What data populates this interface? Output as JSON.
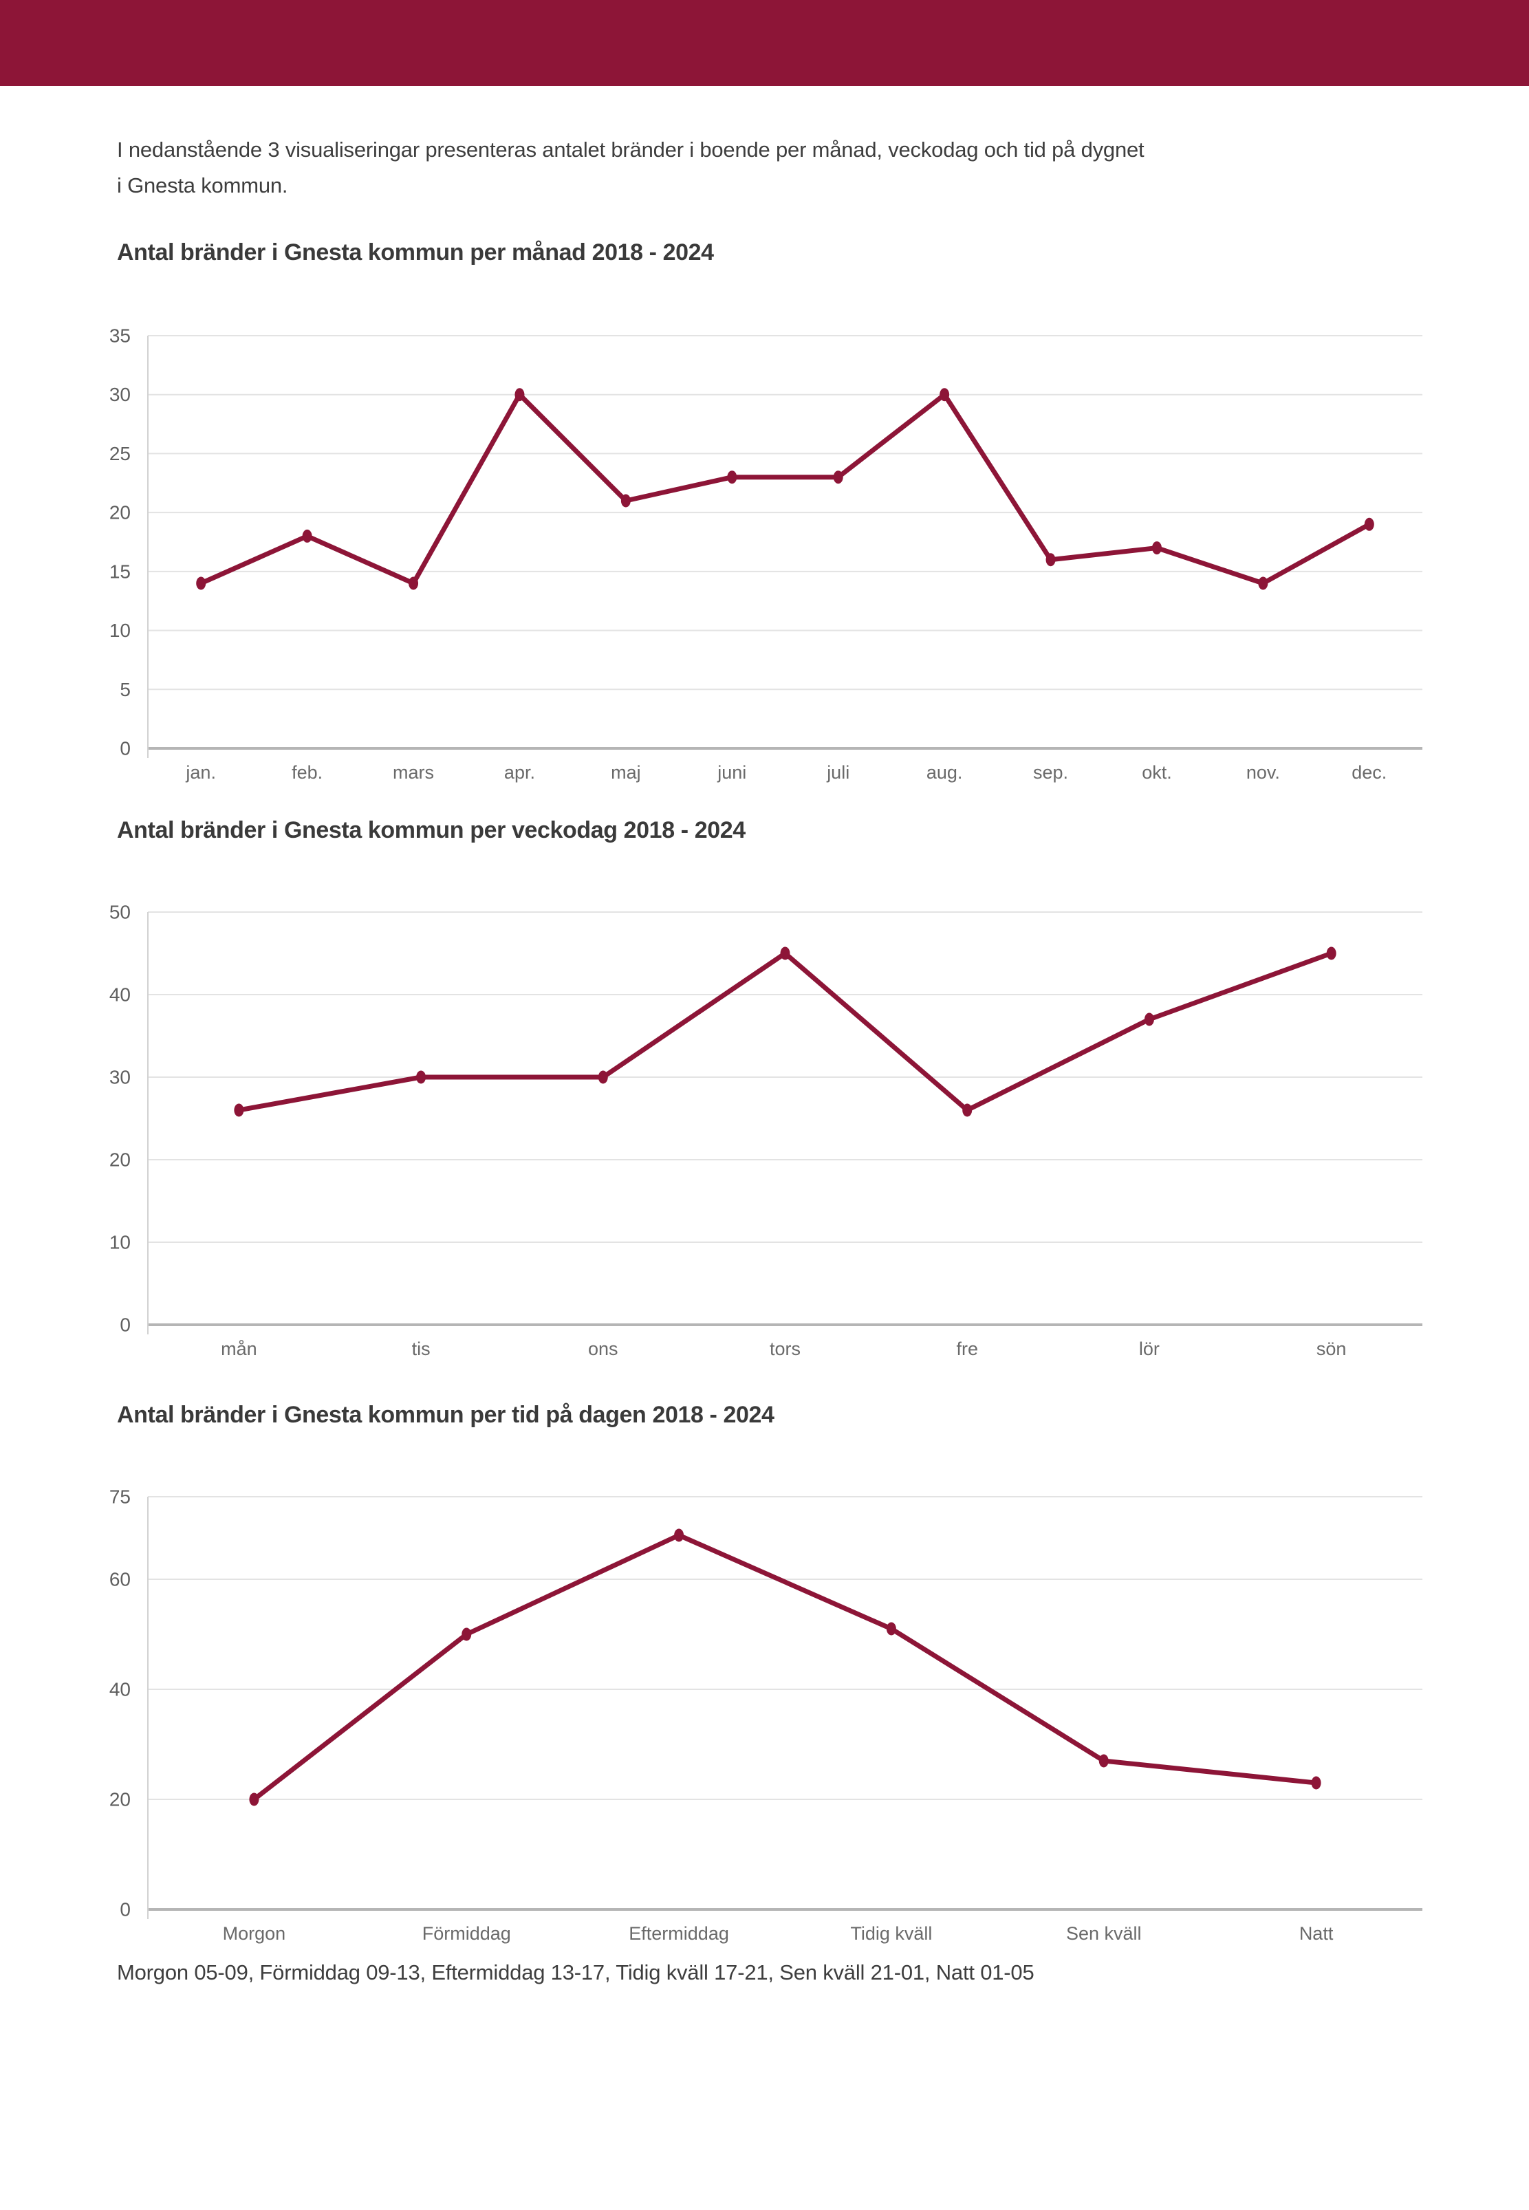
{
  "page": {
    "intro_line1": "I nedanstående 3 visualiseringar presenteras antalet bränder i boende per månad, veckodag och tid på dygnet",
    "intro_line2": "i Gnesta kommun.",
    "footer_note": "Morgon 05-09, Förmiddag 09-13, Eftermiddag 13-17, Tidig kväll 17-21, Sen kväll 21-01, Natt 01-05"
  },
  "colors": {
    "brand_maroon": "#8D1537",
    "line": "#8D1537",
    "point": "#8D1537",
    "grid": "#E3E3E3",
    "axis_zero": "#B5B5B5",
    "axis_left": "#D2D2D2",
    "tick_text": "#6A6A6A",
    "value_text": "#5F5F5F",
    "title_text": "#3A3A3A"
  },
  "chart_data": [
    {
      "type": "line",
      "title": "Antal bränder i Gnesta kommun per månad 2018 - 2024",
      "categories": [
        "jan.",
        "feb.",
        "mars",
        "apr.",
        "maj",
        "juni",
        "juli",
        "aug.",
        "sep.",
        "okt.",
        "nov.",
        "dec."
      ],
      "values": [
        14,
        18,
        14,
        30,
        21,
        23,
        23,
        30,
        16,
        17,
        14,
        19
      ],
      "xlabel": "",
      "ylabel": "",
      "ylim": [
        0,
        35
      ],
      "y_ticks": [
        0,
        5,
        10,
        15,
        20,
        25,
        30,
        35
      ],
      "grid": "horizontal",
      "legend": "none"
    },
    {
      "type": "line",
      "title": "Antal bränder i Gnesta kommun per veckodag 2018 - 2024",
      "categories": [
        "mån",
        "tis",
        "ons",
        "tors",
        "fre",
        "lör",
        "sön"
      ],
      "values": [
        26,
        30,
        30,
        45,
        26,
        37,
        45
      ],
      "xlabel": "",
      "ylabel": "",
      "ylim": [
        0,
        50
      ],
      "y_ticks": [
        0,
        10,
        20,
        30,
        40,
        50
      ],
      "grid": "horizontal",
      "legend": "none"
    },
    {
      "type": "line",
      "title": "Antal bränder i Gnesta kommun per tid på dagen 2018 - 2024",
      "categories": [
        "Morgon",
        "Förmiddag",
        "Eftermiddag",
        "Tidig kväll",
        "Sen kväll",
        "Natt"
      ],
      "values": [
        20,
        50,
        68,
        51,
        27,
        23
      ],
      "xlabel": "",
      "ylabel": "",
      "ylim": [
        0,
        75
      ],
      "y_ticks": [
        0,
        20,
        40,
        60,
        75
      ],
      "grid": "horizontal",
      "legend": "none"
    }
  ]
}
